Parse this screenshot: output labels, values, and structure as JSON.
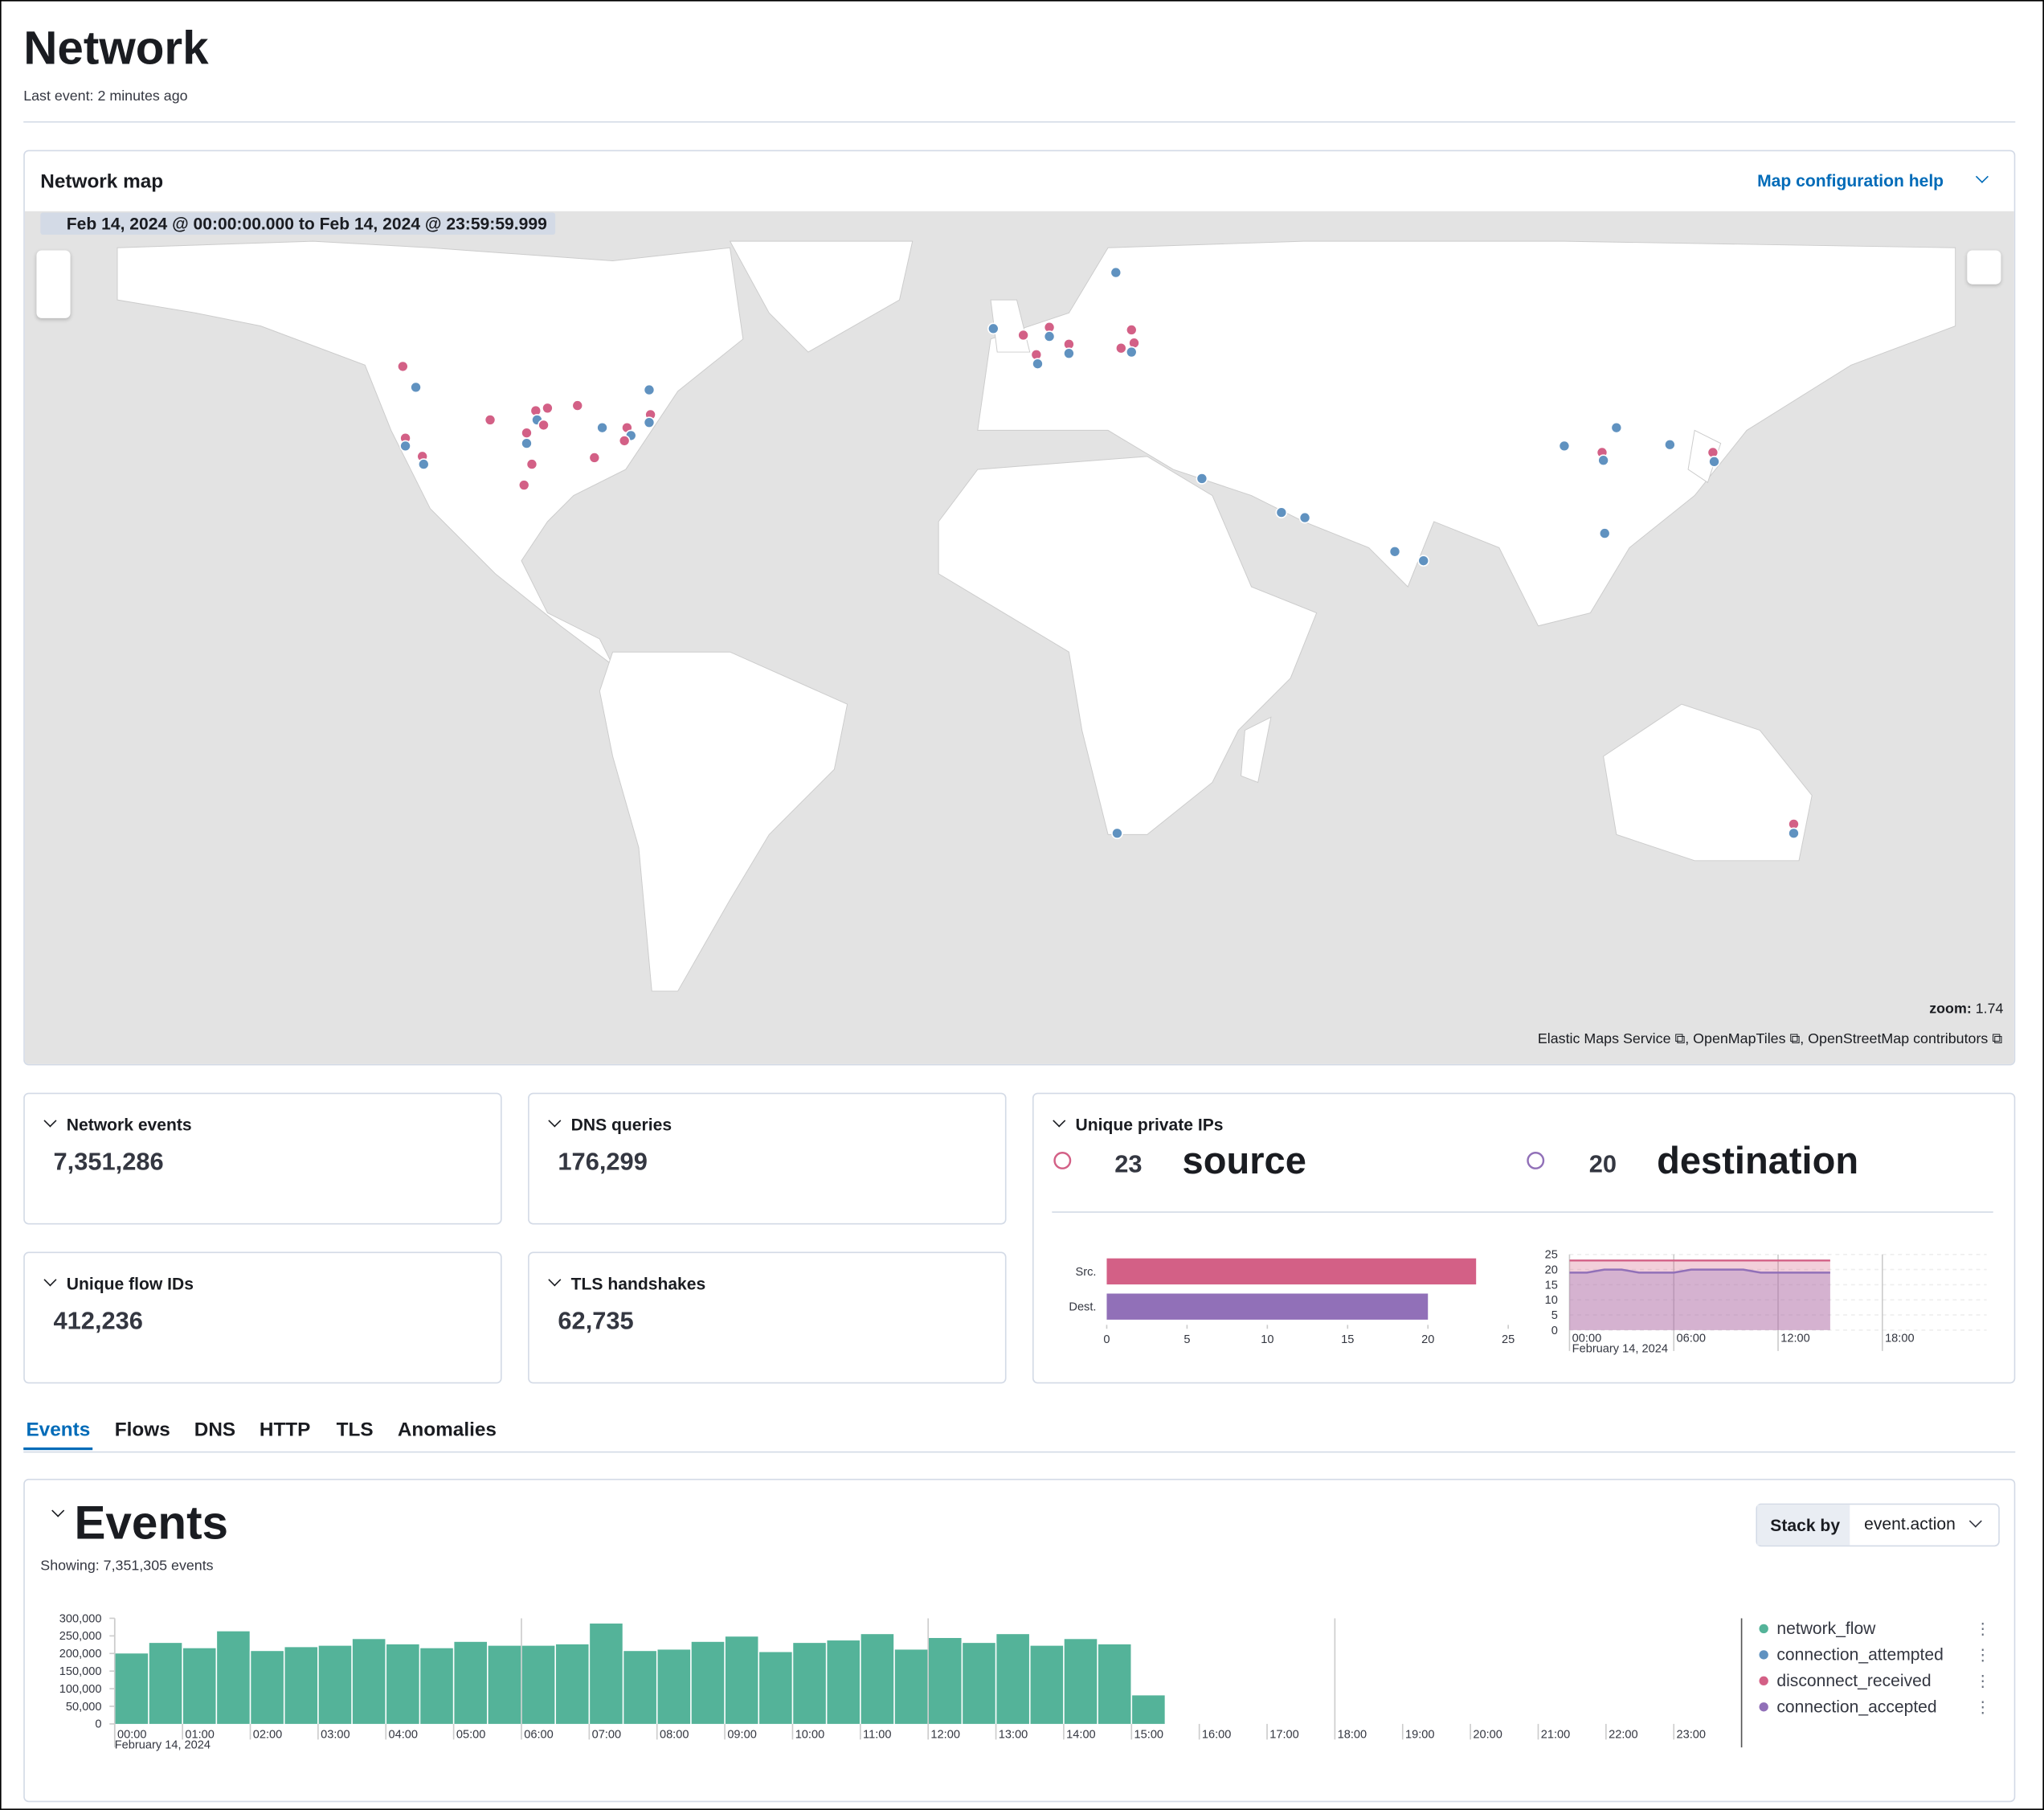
{
  "header": {
    "title": "Network",
    "subtitle": "Last event: 2 minutes ago"
  },
  "map": {
    "title": "Network map",
    "help_link": "Map configuration help",
    "time_range": "Feb 14, 2024 @ 00:00:00.000 to Feb 14, 2024 @ 23:59:59.999",
    "zoom_label": "zoom:",
    "zoom_value": "1.74",
    "attributions": [
      "Elastic Maps Service",
      "OpenMapTiles",
      "OpenStreetMap contributors"
    ]
  },
  "stats": [
    {
      "title": "Network events",
      "value": "7,351,286"
    },
    {
      "title": "DNS queries",
      "value": "176,299"
    },
    {
      "title": "Unique flow IDs",
      "value": "412,236"
    },
    {
      "title": "TLS handshakes",
      "value": "62,735"
    }
  ],
  "unique_private_ips": {
    "title": "Unique private IPs",
    "source_count": 23,
    "source_label": "source",
    "destination_count": 20,
    "destination_label": "destination"
  },
  "tabs": [
    "Events",
    "Flows",
    "DNS",
    "HTTP",
    "TLS",
    "Anomalies"
  ],
  "events_panel": {
    "title": "Events",
    "showing": "Showing: 7,351,305 events",
    "stack_by_label": "Stack by",
    "stack_by_value": "event.action"
  },
  "chart_data": [
    {
      "type": "hbar",
      "categories": [
        "Src.",
        "Dest."
      ],
      "values": [
        23,
        20
      ],
      "colors": [
        "#d36086",
        "#9170b8"
      ],
      "xlim": [
        0,
        25
      ],
      "xticks": [
        0,
        5,
        10,
        15,
        20,
        25
      ]
    },
    {
      "type": "area",
      "x": [
        0,
        1,
        2,
        3,
        4,
        5,
        6,
        7,
        8,
        9,
        10,
        11,
        12,
        13,
        14,
        15
      ],
      "series": [
        {
          "name": "source",
          "color": "#d36086",
          "values": [
            23,
            23,
            23,
            23,
            23,
            23,
            23,
            23,
            23,
            23,
            23,
            23,
            23,
            23,
            23,
            23
          ]
        },
        {
          "name": "destination",
          "color": "#9170b8",
          "values": [
            19,
            19,
            20,
            20,
            19,
            19,
            19,
            20,
            20,
            20,
            20,
            19,
            19,
            19,
            19,
            19
          ]
        }
      ],
      "xlim": [
        0,
        24
      ],
      "xticks": [
        {
          "value": 0,
          "label": "00:00"
        },
        {
          "value": 6,
          "label": "06:00"
        },
        {
          "value": 12,
          "label": "12:00"
        },
        {
          "value": 18,
          "label": "18:00"
        }
      ],
      "x_sublabel": "February 14, 2024",
      "ylim": [
        0,
        25
      ],
      "yticks": [
        0,
        5,
        10,
        15,
        20,
        25
      ]
    },
    {
      "type": "histogram",
      "color": "#54b399",
      "bins": [
        0,
        0.5,
        1,
        1.5,
        2,
        2.5,
        3,
        3.5,
        4,
        4.5,
        5,
        5.5,
        6,
        6.5,
        7,
        7.5,
        8,
        8.5,
        9,
        9.5,
        10,
        10.5,
        11,
        11.5,
        12,
        12.5,
        13,
        13.5,
        14,
        14.5,
        15,
        15.5
      ],
      "values": [
        200000,
        230000,
        215000,
        263000,
        207000,
        218000,
        222000,
        241000,
        226000,
        215000,
        233000,
        222000,
        222000,
        226000,
        285000,
        207000,
        211000,
        233000,
        248000,
        204000,
        230000,
        237000,
        255000,
        211000,
        244000,
        230000,
        255000,
        222000,
        241000,
        226000,
        81000
      ],
      "xlim": [
        0,
        24
      ],
      "xticks": [
        {
          "value": 0,
          "label": "00:00"
        },
        {
          "value": 1,
          "label": "01:00"
        },
        {
          "value": 2,
          "label": "02:00"
        },
        {
          "value": 3,
          "label": "03:00"
        },
        {
          "value": 4,
          "label": "04:00"
        },
        {
          "value": 5,
          "label": "05:00"
        },
        {
          "value": 6,
          "label": "06:00"
        },
        {
          "value": 7,
          "label": "07:00"
        },
        {
          "value": 8,
          "label": "08:00"
        },
        {
          "value": 9,
          "label": "09:00"
        },
        {
          "value": 10,
          "label": "10:00"
        },
        {
          "value": 11,
          "label": "11:00"
        },
        {
          "value": 12,
          "label": "12:00"
        },
        {
          "value": 13,
          "label": "13:00"
        },
        {
          "value": 14,
          "label": "14:00"
        },
        {
          "value": 15,
          "label": "15:00"
        },
        {
          "value": 16,
          "label": "16:00"
        },
        {
          "value": 17,
          "label": "17:00"
        },
        {
          "value": 18,
          "label": "18:00"
        },
        {
          "value": 19,
          "label": "19:00"
        },
        {
          "value": 20,
          "label": "20:00"
        },
        {
          "value": 21,
          "label": "21:00"
        },
        {
          "value": 22,
          "label": "22:00"
        },
        {
          "value": 23,
          "label": "23:00"
        }
      ],
      "x_sublabel": "February 14, 2024",
      "ylim": [
        0,
        300000
      ],
      "yticks": [
        0,
        {
          "value": 50000,
          "label": "50,000"
        },
        {
          "value": 100000,
          "label": "100,000"
        },
        {
          "value": 150000,
          "label": "150,000"
        },
        {
          "value": 200000,
          "label": "200,000"
        },
        {
          "value": 250000,
          "label": "250,000"
        },
        {
          "value": 300000,
          "label": "300,000"
        }
      ],
      "legend": [
        {
          "name": "network_flow",
          "color": "#54b399"
        },
        {
          "name": "connection_attempted",
          "color": "#6092c0"
        },
        {
          "name": "disconnect_received",
          "color": "#d36086"
        },
        {
          "name": "connection_accepted",
          "color": "#9170b8"
        }
      ]
    }
  ]
}
